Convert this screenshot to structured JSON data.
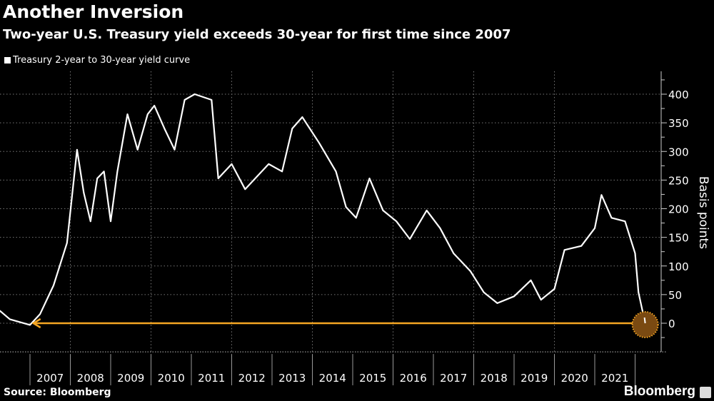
{
  "title": "Another Inversion",
  "subtitle": "Two-year U.S. Treasury yield exceeds 30-year for first time since 2007",
  "legend": "Treasury 2-year to 30-year yield curve",
  "source": "Source: Bloomberg",
  "brand": "Bloomberg",
  "chart_data": {
    "type": "line",
    "title": "Another Inversion",
    "ylabel": "Basis points",
    "ylim": [
      -50,
      440
    ],
    "yticks": [
      0,
      50,
      100,
      150,
      200,
      250,
      300,
      350,
      400
    ],
    "xticks": [
      "2007",
      "2008",
      "2009",
      "2010",
      "2011",
      "2012",
      "2013",
      "2014",
      "2015",
      "2016",
      "2017",
      "2018",
      "2019",
      "2020",
      "2021"
    ],
    "y_axis_position": "right",
    "grid": true,
    "colors": {
      "line": "#ffffff",
      "arrow": "#f5a623",
      "marker_fill": "#7a4a12"
    },
    "series": [
      {
        "name": "Treasury 2-year to 30-year yield curve",
        "points": [
          [
            "2006-04",
            22
          ],
          [
            "2006-07",
            7
          ],
          [
            "2007-01",
            -3
          ],
          [
            "2007-04",
            16
          ],
          [
            "2007-08",
            66
          ],
          [
            "2007-12",
            140
          ],
          [
            "2008-03",
            303
          ],
          [
            "2008-05",
            228
          ],
          [
            "2008-07",
            178
          ],
          [
            "2008-09",
            253
          ],
          [
            "2008-11",
            265
          ],
          [
            "2009-01",
            178
          ],
          [
            "2009-03",
            265
          ],
          [
            "2009-06",
            365
          ],
          [
            "2009-09",
            303
          ],
          [
            "2009-12",
            365
          ],
          [
            "2010-02",
            380
          ],
          [
            "2010-05",
            340
          ],
          [
            "2010-08",
            303
          ],
          [
            "2010-11",
            390
          ],
          [
            "2011-02",
            400
          ],
          [
            "2011-07",
            390
          ],
          [
            "2011-09",
            253
          ],
          [
            "2012-01",
            278
          ],
          [
            "2012-05",
            234
          ],
          [
            "2012-08",
            253
          ],
          [
            "2012-12",
            278
          ],
          [
            "2013-04",
            265
          ],
          [
            "2013-07",
            340
          ],
          [
            "2013-10",
            360
          ],
          [
            "2014-03",
            315
          ],
          [
            "2014-08",
            265
          ],
          [
            "2014-11",
            203
          ],
          [
            "2015-02",
            184
          ],
          [
            "2015-06",
            253
          ],
          [
            "2015-10",
            197
          ],
          [
            "2016-02",
            178
          ],
          [
            "2016-06",
            147
          ],
          [
            "2016-11",
            197
          ],
          [
            "2017-03",
            166
          ],
          [
            "2017-07",
            122
          ],
          [
            "2017-12",
            91
          ],
          [
            "2018-04",
            54
          ],
          [
            "2018-08",
            35
          ],
          [
            "2019-01",
            47
          ],
          [
            "2019-06",
            75
          ],
          [
            "2019-09",
            41
          ],
          [
            "2020-01",
            60
          ],
          [
            "2020-04",
            128
          ],
          [
            "2020-09",
            135
          ],
          [
            "2021-01",
            166
          ],
          [
            "2021-03",
            224
          ],
          [
            "2021-06",
            184
          ],
          [
            "2021-10",
            178
          ],
          [
            "2022-01",
            122
          ],
          [
            "2022-02",
            54
          ],
          [
            "2022-04",
            0
          ]
        ]
      }
    ],
    "annotations": [
      {
        "type": "arrow",
        "from": "2022-03",
        "to": "2007-02",
        "value": 0
      },
      {
        "type": "circle",
        "at": "2022-04",
        "value": 0
      }
    ]
  }
}
